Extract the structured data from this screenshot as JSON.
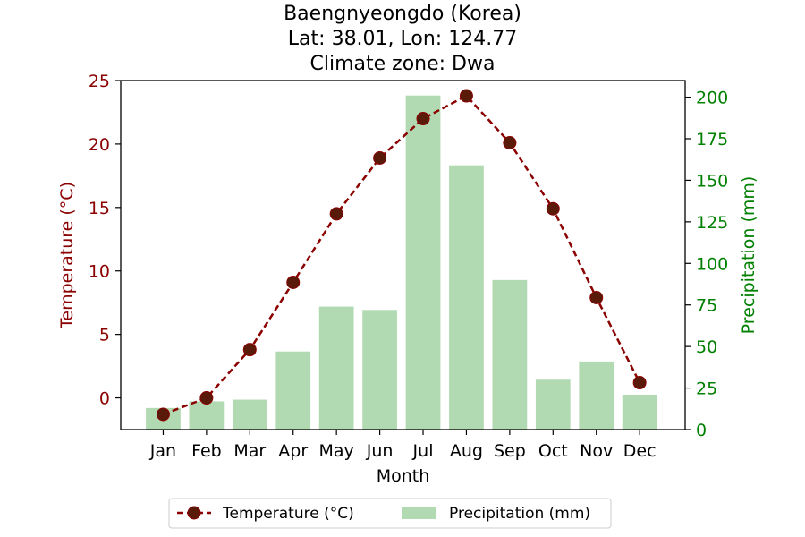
{
  "chart_data": {
    "type": "bar+line",
    "title_lines": [
      "Baengnyeongdo (Korea)",
      "Lat: 38.01, Lon: 124.77",
      "Climate zone: Dwa"
    ],
    "xlabel": "Month",
    "ylabel_left": "Temperature (°C)",
    "ylabel_right": "Precipitation (mm)",
    "categories": [
      "Jan",
      "Feb",
      "Mar",
      "Apr",
      "May",
      "Jun",
      "Jul",
      "Aug",
      "Sep",
      "Oct",
      "Nov",
      "Dec"
    ],
    "ylim_left": [
      -2.5,
      25
    ],
    "ylim_right": [
      0,
      210
    ],
    "yticks_left": [
      0,
      5,
      10,
      15,
      20,
      25
    ],
    "yticks_right": [
      0,
      25,
      50,
      75,
      100,
      125,
      150,
      175,
      200
    ],
    "series": [
      {
        "name": "Temperature (°C)",
        "type": "line",
        "axis": "left",
        "color": "#8b0000",
        "values": [
          -1.3,
          0.0,
          3.8,
          9.1,
          14.5,
          18.9,
          22.0,
          23.8,
          20.1,
          14.9,
          7.9,
          1.2
        ]
      },
      {
        "name": "Precipitation (mm)",
        "type": "bar",
        "axis": "right",
        "color": "#b2dab2",
        "values": [
          13,
          17,
          18,
          47,
          74,
          72,
          201,
          159,
          90,
          30,
          41,
          21
        ]
      }
    ],
    "legend_position": "bottom-center",
    "grid": false,
    "colors": {
      "left_axis": "#8b0000",
      "right_axis": "#008000",
      "line": "#8b0000",
      "bar": "#b2dab2"
    }
  }
}
